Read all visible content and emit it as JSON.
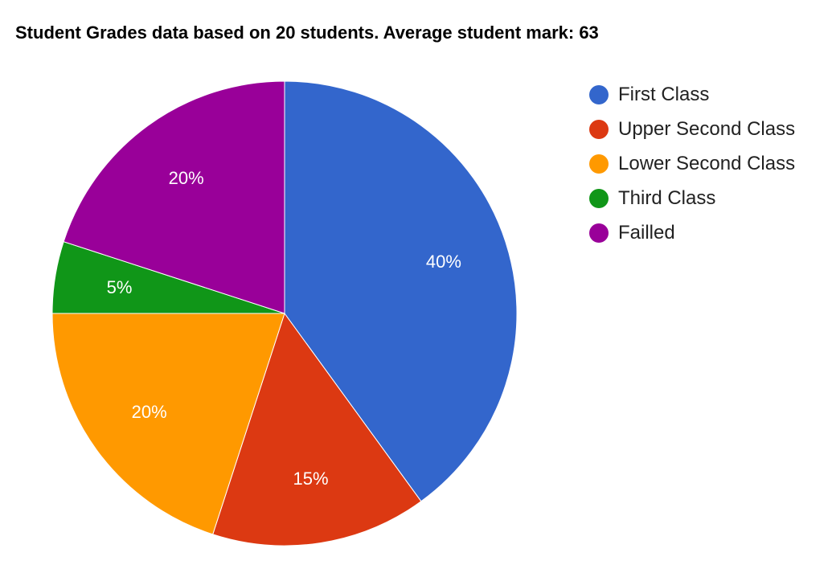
{
  "chart_data": {
    "type": "pie",
    "title": "Student Grades data based on 20 students. Average student mark: 63",
    "legend_position": "right",
    "slices": [
      {
        "name": "First Class",
        "value": 40,
        "label": "40%",
        "color": "#3366cc"
      },
      {
        "name": "Upper Second Class",
        "value": 15,
        "label": "15%",
        "color": "#dc3912"
      },
      {
        "name": "Lower Second Class",
        "value": 20,
        "label": "20%",
        "color": "#ff9900"
      },
      {
        "name": "Third Class",
        "value": 5,
        "label": "5%",
        "color": "#109618"
      },
      {
        "name": "Failled",
        "value": 20,
        "label": "20%",
        "color": "#990099"
      }
    ]
  }
}
